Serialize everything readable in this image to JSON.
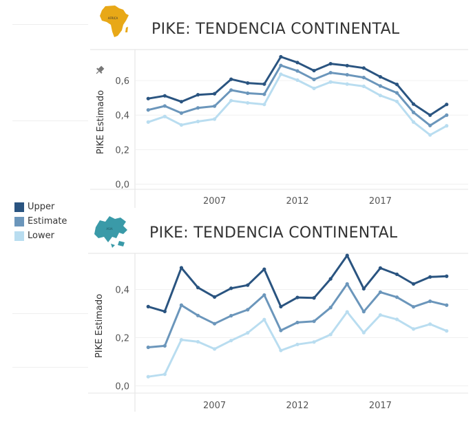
{
  "legend": {
    "items": [
      {
        "label": "Upper",
        "color": "#2a5480"
      },
      {
        "label": "Estimate",
        "color": "#6b96bb"
      },
      {
        "label": "Lower",
        "color": "#b9ddf0"
      }
    ]
  },
  "panels": [
    {
      "title": "PIKE: TENDENCIA CONTINENTAL",
      "map": {
        "name": "africa-map-icon",
        "color": "#e8a817",
        "label": "AFRICA"
      }
    },
    {
      "title": "PIKE: TENDENCIA CONTINENTAL",
      "map": {
        "name": "asia-map-icon",
        "color": "#3a9aa8",
        "label": "ASIA"
      }
    }
  ],
  "chart_data": [
    {
      "type": "line",
      "title": "PIKE: TENDENCIA CONTINENTAL",
      "ylabel": "PIKE Estimado",
      "ylim": [
        -0.03,
        0.78
      ],
      "yticks": [
        0.0,
        0.2,
        0.4,
        0.6
      ],
      "ytick_labels": [
        "0,0",
        "0,2",
        "0,4",
        "0,6"
      ],
      "xlim": [
        2002.2,
        2021.8
      ],
      "xticks": [
        2007,
        2012,
        2017
      ],
      "x": [
        2003,
        2004,
        2005,
        2006,
        2007,
        2008,
        2009,
        2010,
        2011,
        2012,
        2013,
        2014,
        2015,
        2016,
        2017,
        2018,
        2019,
        2020,
        2021
      ],
      "series": [
        {
          "name": "Upper",
          "color": "#2a5480",
          "values": [
            0.496,
            0.512,
            0.478,
            0.518,
            0.524,
            0.608,
            0.586,
            0.58,
            0.738,
            0.705,
            0.658,
            0.698,
            0.687,
            0.673,
            0.622,
            0.578,
            0.464,
            0.4,
            0.462
          ]
        },
        {
          "name": "Estimate",
          "color": "#6b96bb",
          "values": [
            0.43,
            0.453,
            0.412,
            0.442,
            0.452,
            0.545,
            0.527,
            0.521,
            0.688,
            0.656,
            0.607,
            0.646,
            0.634,
            0.618,
            0.569,
            0.529,
            0.416,
            0.34,
            0.4
          ]
        },
        {
          "name": "Lower",
          "color": "#b9ddf0",
          "values": [
            0.36,
            0.392,
            0.343,
            0.363,
            0.377,
            0.484,
            0.471,
            0.462,
            0.637,
            0.603,
            0.555,
            0.592,
            0.58,
            0.567,
            0.514,
            0.479,
            0.36,
            0.285,
            0.338
          ]
        }
      ]
    },
    {
      "type": "line",
      "title": "PIKE: TENDENCIA CONTINENTAL",
      "ylabel": "PIKE Estimado",
      "ylim": [
        -0.03,
        0.55
      ],
      "yticks": [
        0.0,
        0.2,
        0.4
      ],
      "ytick_labels": [
        "0,0",
        "0,2",
        "0,4"
      ],
      "xlim": [
        2002.2,
        2021.8
      ],
      "xticks": [
        2007,
        2012,
        2017
      ],
      "x": [
        2003,
        2004,
        2005,
        2006,
        2007,
        2008,
        2009,
        2010,
        2011,
        2012,
        2013,
        2014,
        2015,
        2016,
        2017,
        2018,
        2019,
        2020,
        2021
      ],
      "series": [
        {
          "name": "Upper",
          "color": "#2a5480",
          "values": [
            0.329,
            0.309,
            0.49,
            0.408,
            0.369,
            0.405,
            0.418,
            0.484,
            0.329,
            0.367,
            0.365,
            0.444,
            0.541,
            0.403,
            0.489,
            0.463,
            0.423,
            0.452,
            0.455
          ]
        },
        {
          "name": "Estimate",
          "color": "#6b96bb",
          "values": [
            0.16,
            0.166,
            0.335,
            0.292,
            0.258,
            0.291,
            0.316,
            0.377,
            0.23,
            0.263,
            0.268,
            0.325,
            0.423,
            0.308,
            0.389,
            0.368,
            0.328,
            0.351,
            0.335
          ]
        },
        {
          "name": "Lower",
          "color": "#b9ddf0",
          "values": [
            0.038,
            0.048,
            0.191,
            0.183,
            0.153,
            0.188,
            0.22,
            0.275,
            0.147,
            0.172,
            0.182,
            0.213,
            0.307,
            0.221,
            0.294,
            0.276,
            0.236,
            0.256,
            0.228
          ]
        }
      ]
    }
  ]
}
